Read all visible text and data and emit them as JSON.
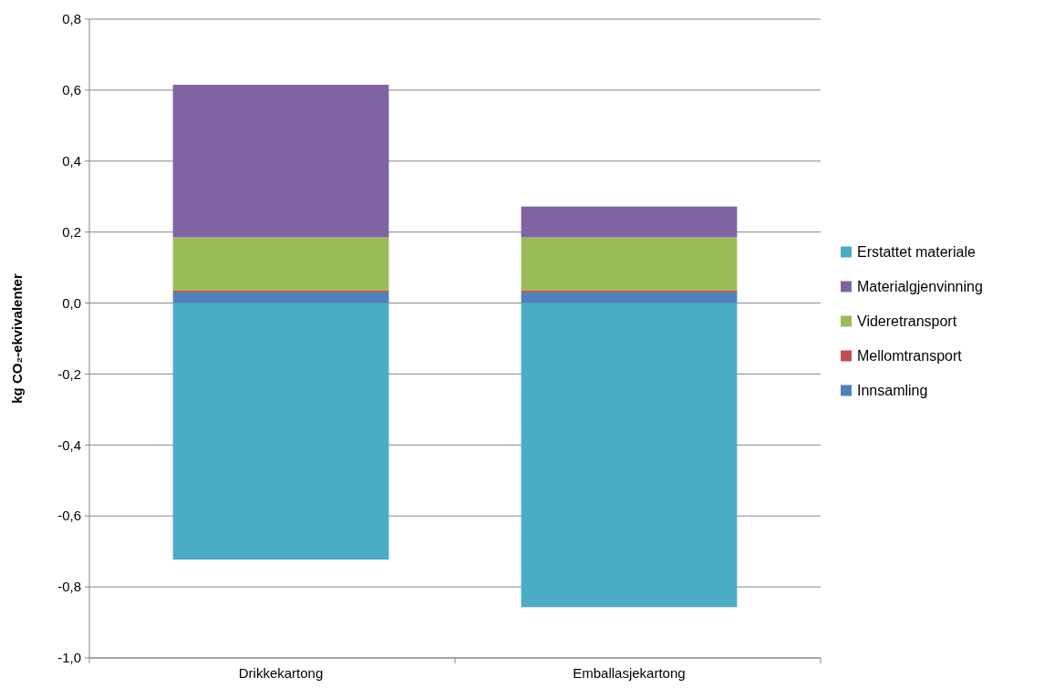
{
  "chart_data": {
    "type": "bar",
    "stacked": true,
    "ylabel": "kg CO₂-ekvivalenter",
    "categories": [
      "Drikkekartong",
      "Emballasjekartong"
    ],
    "series": [
      {
        "name": "Innsamling",
        "color": "#4f81bd",
        "values": [
          0.03,
          0.03
        ]
      },
      {
        "name": "Mellomtransport",
        "color": "#c0504d",
        "values": [
          0.005,
          0.005
        ]
      },
      {
        "name": "Videretransport",
        "color": "#9bbb59",
        "values": [
          0.15,
          0.15
        ]
      },
      {
        "name": "Materialgjenvinning",
        "color": "#8064a2",
        "values": [
          0.43,
          0.087
        ]
      },
      {
        "name": "Erstattet materiale",
        "color": "#4bacc6",
        "values": [
          -0.723,
          -0.857
        ]
      }
    ],
    "ylim": [
      -1.0,
      0.8
    ],
    "yticks": [
      {
        "value": -1.0,
        "label": "-1,0"
      },
      {
        "value": -0.8,
        "label": "-0,8"
      },
      {
        "value": -0.6,
        "label": "-0,6"
      },
      {
        "value": -0.4,
        "label": "-0,4"
      },
      {
        "value": -0.2,
        "label": "-0,2"
      },
      {
        "value": 0,
        "label": "0,0"
      },
      {
        "value": 0.2,
        "label": "0,2"
      },
      {
        "value": 0.4,
        "label": "0,4"
      },
      {
        "value": 0.6,
        "label": "0,6"
      },
      {
        "value": 0.8,
        "label": "0,8"
      }
    ],
    "grid": "y",
    "legend": "right"
  }
}
